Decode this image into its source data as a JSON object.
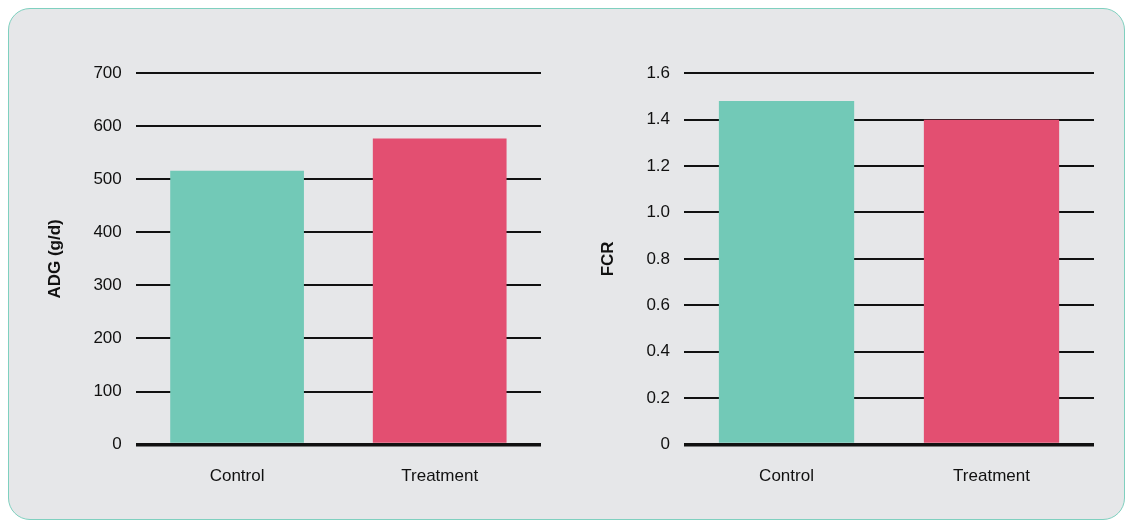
{
  "chart_data": [
    {
      "type": "bar",
      "ylabel": "ADG (g/d)",
      "categories": [
        "Control",
        "Treatment"
      ],
      "values": [
        516,
        577
      ],
      "colors": [
        "#72c9b7",
        "#e34f71"
      ],
      "ylim": [
        0,
        700
      ],
      "yticks": [
        0,
        100,
        200,
        300,
        400,
        500,
        600,
        700
      ],
      "grid": "y",
      "legend": false
    },
    {
      "type": "bar",
      "ylabel": "FCR",
      "categories": [
        "Control",
        "Treatment"
      ],
      "values": [
        1.48,
        1.4
      ],
      "colors": [
        "#72c9b7",
        "#e34f71"
      ],
      "ylim": [
        0,
        1.6
      ],
      "yticks": [
        0,
        {
          "value": 0.2,
          "label": "0.2"
        },
        {
          "value": 0.4,
          "label": "0.4"
        },
        {
          "value": 0.6,
          "label": "0.6"
        },
        {
          "value": 0.8,
          "label": "0.8"
        },
        {
          "value": 1.0,
          "label": "1.0"
        },
        {
          "value": 1.2,
          "label": "1.2"
        },
        {
          "value": 1.4,
          "label": "1.4"
        },
        {
          "value": 1.6,
          "label": "1.6"
        }
      ],
      "grid": "y",
      "legend": false
    }
  ]
}
